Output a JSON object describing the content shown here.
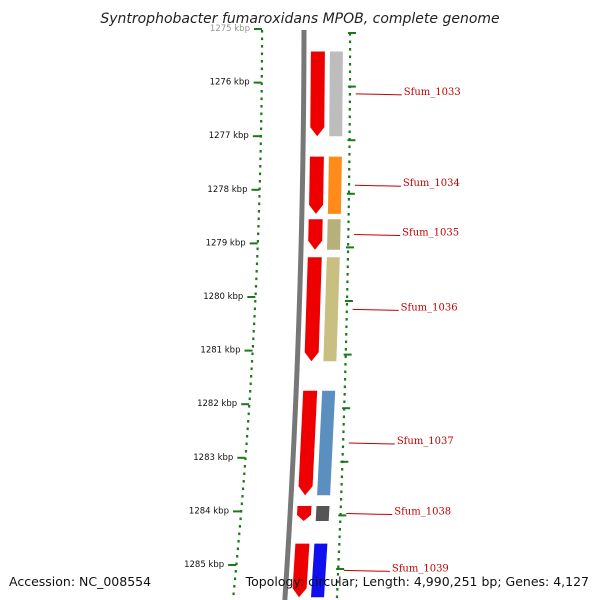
{
  "title": "Syntrophobacter fumaroxidans MPOB, complete genome",
  "footer": {
    "accession": "Accession: NC_008554",
    "topology": "Topology: circular; Length: 4,990,251 bp; Genes: 4,127"
  },
  "colors": {
    "arrow": "#ee0000",
    "scale_dots": "#1a7a1a",
    "backbone": "#777777",
    "label_text": "#c00000"
  },
  "ticks": [
    {
      "label": "1275 kbp",
      "value": 1275
    },
    {
      "label": "1276 kbp",
      "value": 1276
    },
    {
      "label": "1277 kbp",
      "value": 1277
    },
    {
      "label": "1278 kbp",
      "value": 1278
    },
    {
      "label": "1279 kbp",
      "value": 1279
    },
    {
      "label": "1280 kbp",
      "value": 1280
    },
    {
      "label": "1281 kbp",
      "value": 1281
    },
    {
      "label": "1282 kbp",
      "value": 1282
    },
    {
      "label": "1283 kbp",
      "value": 1283
    },
    {
      "label": "1284 kbp",
      "value": 1284
    },
    {
      "label": "1285 kbp",
      "value": 1285
    }
  ],
  "genes": [
    {
      "name": "Sfum_1033",
      "start": 1275.42,
      "end": 1277.0,
      "color": "#bdbdbd"
    },
    {
      "name": "Sfum_1034",
      "start": 1277.38,
      "end": 1278.45,
      "color": "#ff8c1a"
    },
    {
      "name": "Sfum_1035",
      "start": 1278.55,
      "end": 1279.12,
      "color": "#b8b07a"
    },
    {
      "name": "Sfum_1036",
      "start": 1279.26,
      "end": 1281.2,
      "color": "#c8bf80"
    },
    {
      "name": "Sfum_1037",
      "start": 1281.75,
      "end": 1283.7,
      "color": "#5b8fbf"
    },
    {
      "name": "Sfum_1038",
      "start": 1283.9,
      "end": 1284.18,
      "color": "#555555"
    },
    {
      "name": "Sfum_1039",
      "start": 1284.6,
      "end": 1285.6,
      "color": "#1010ee"
    }
  ]
}
